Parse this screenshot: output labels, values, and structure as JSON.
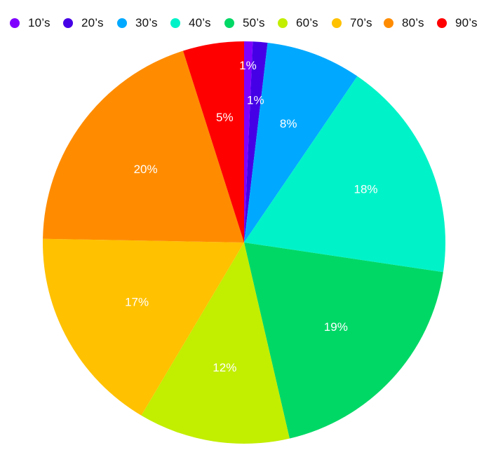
{
  "chart_data": {
    "type": "pie",
    "title": "",
    "legend_position": "top",
    "categories": [
      "10’s",
      "20’s",
      "30’s",
      "40’s",
      "50’s",
      "60’s",
      "70’s",
      "80’s",
      "90’s"
    ],
    "values": [
      0.7,
      1.2,
      7.8,
      18.2,
      19.4,
      12.4,
      17.1,
      20.2,
      5.0
    ],
    "labels": [
      "1%",
      "1%",
      "8%",
      "18%",
      "19%",
      "12%",
      "17%",
      "20%",
      "5%"
    ],
    "colors": [
      "#8000ff",
      "#4500e6",
      "#00a9ff",
      "#00f3c8",
      "#00d866",
      "#c2ee00",
      "#ffc100",
      "#ff8c00",
      "#ff0000"
    ]
  }
}
